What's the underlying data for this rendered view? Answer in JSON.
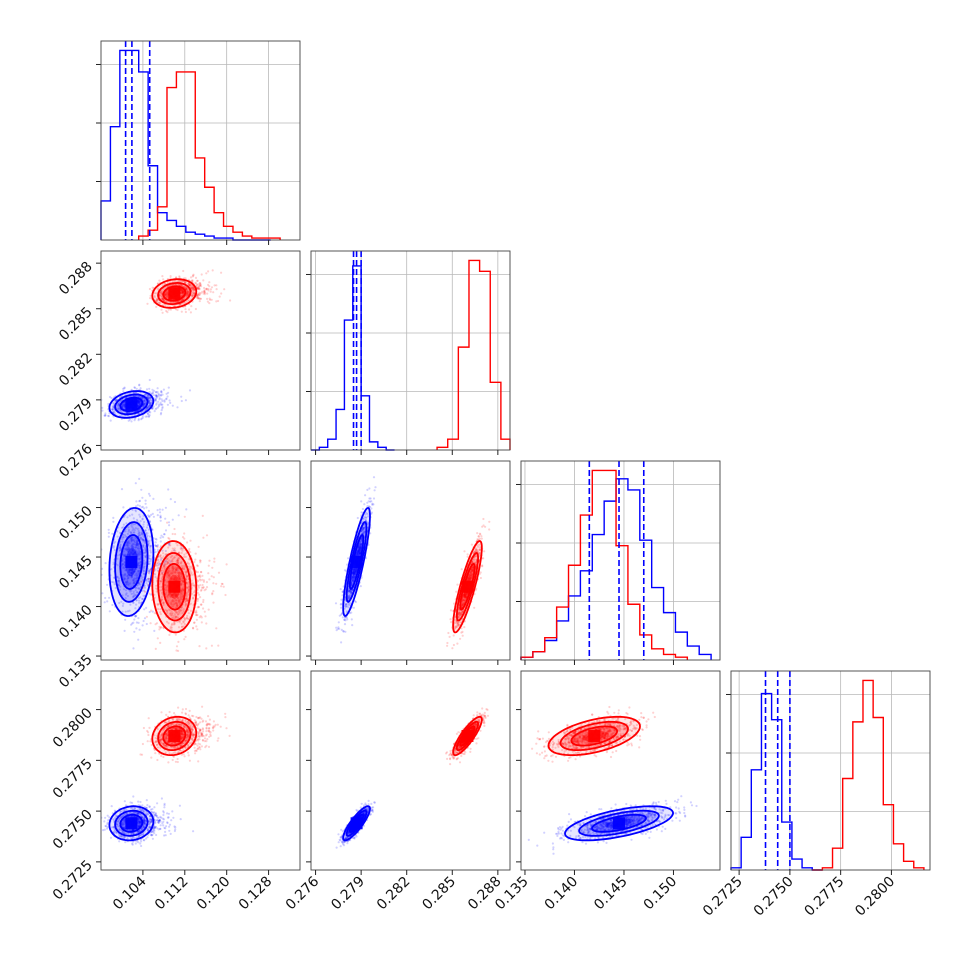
{
  "chart_data": {
    "type": "corner",
    "parameters": [
      {
        "xlim": [
          0.096,
          0.134
        ],
        "ticks": [
          0.104,
          0.112,
          0.12,
          0.128
        ],
        "tick_labels": [
          "0.104",
          "0.112",
          "0.120",
          "0.128"
        ]
      },
      {
        "xlim": [
          0.2757,
          0.2888
        ],
        "ticks": [
          0.276,
          0.279,
          0.282,
          0.285,
          0.288
        ],
        "tick_labels": [
          "0.276",
          "0.279",
          "0.282",
          "0.285",
          "0.288"
        ]
      },
      {
        "xlim": [
          0.1346,
          0.1547
        ],
        "ticks": [
          0.135,
          0.14,
          0.145,
          0.15
        ],
        "tick_labels": [
          "0.135",
          "0.140",
          "0.145",
          "0.150"
        ]
      },
      {
        "xlim": [
          0.2721,
          0.2819
        ],
        "ticks": [
          0.2725,
          0.275,
          0.2775,
          0.28
        ],
        "tick_labels": [
          "0.2725",
          "0.2750",
          "0.2775",
          "0.2800"
        ]
      }
    ],
    "series": [
      {
        "color": "#0000ff",
        "quantiles": [
          [
            0.1007,
            0.1019,
            0.1053
          ],
          [
            0.2785,
            0.2787,
            0.279
          ],
          [
            0.1415,
            0.1445,
            0.147
          ],
          [
            0.2738,
            0.2744,
            0.275
          ]
        ],
        "marginals": [
          {
            "edges": [
              0.096,
              0.0978,
              0.0996,
              0.1014,
              0.1032,
              0.105,
              0.1068,
              0.1086,
              0.1104,
              0.1122,
              0.114,
              0.1158,
              0.1176,
              0.1194,
              0.1212,
              0.123,
              0.1248,
              0.1266,
              0.1284
            ],
            "counts": [
              20,
              58,
              97,
              97,
              86,
              38,
              14,
              10,
              7,
              4,
              3,
              2,
              1,
              1,
              0,
              0,
              0,
              0
            ]
          },
          {
            "edges": [
              0.2757,
              0.27625,
              0.2768,
              0.27735,
              0.2779,
              0.27845,
              0.279,
              0.27955,
              0.2801,
              0.28065,
              0.2812
            ],
            "counts": [
              0,
              1,
              4,
              15,
              48,
              68,
              20,
              3,
              1,
              0
            ]
          },
          {
            "edges": [
              0.1346,
              0.1358,
              0.137,
              0.1382,
              0.1394,
              0.1406,
              0.1418,
              0.143,
              0.1442,
              0.1454,
              0.1466,
              0.1478,
              0.149,
              0.1502,
              0.1514,
              0.1526,
              0.1538
            ],
            "counts": [
              1,
              3,
              7,
              14,
              23,
              32,
              45,
              57,
              65,
              61,
              43,
              26,
              17,
              10,
              5,
              2
            ]
          },
          {
            "edges": [
              0.2721,
              0.2726,
              0.2731,
              0.2736,
              0.2741,
              0.2746,
              0.2751,
              0.2756,
              0.2761,
              0.2766
            ],
            "counts": [
              1,
              15,
              46,
              81,
              69,
              22,
              5,
              1,
              0
            ]
          }
        ]
      },
      {
        "color": "#ff0000",
        "quantiles": null,
        "marginals": [
          {
            "edges": [
              0.1032,
              0.105,
              0.1068,
              0.1086,
              0.1104,
              0.1122,
              0.114,
              0.1158,
              0.1176,
              0.1194,
              0.1212,
              0.123,
              0.1248,
              0.1266,
              0.1284,
              0.1302
            ],
            "counts": [
              2,
              5,
              17,
              78,
              86,
              86,
              42,
              27,
              14,
              7,
              4,
              2,
              1,
              1,
              1
            ]
          },
          {
            "edges": [
              0.284,
              0.2847,
              0.2854,
              0.2861,
              0.2868,
              0.2875,
              0.2882,
              0.2888
            ],
            "counts": [
              1,
              4,
              38,
              70,
              66,
              25,
              4
            ]
          },
          {
            "edges": [
              0.1346,
              0.1358,
              0.137,
              0.1382,
              0.1394,
              0.1406,
              0.1418,
              0.143,
              0.1442,
              0.1454,
              0.1466,
              0.1478,
              0.149,
              0.1502,
              0.1514
            ],
            "counts": [
              1,
              3,
              8,
              19,
              34,
              52,
              68,
              68,
              41,
              20,
              9,
              4,
              2,
              1
            ]
          },
          {
            "edges": [
              0.2761,
              0.2766,
              0.2771,
              0.2776,
              0.2781,
              0.2786,
              0.2791,
              0.2796,
              0.2801,
              0.2806,
              0.2811,
              0.2816
            ],
            "counts": [
              0,
              1,
              10,
              42,
              68,
              87,
              70,
              30,
              12,
              4,
              1
            ]
          }
        ]
      }
    ],
    "clusters": [
      {
        "color": "#0000ff",
        "mean": [
          0.1018,
          0.2787,
          0.1445,
          0.2744
        ],
        "sd": [
          0.002,
          0.00042,
          0.0026,
          0.0004
        ],
        "corr": [
          [
            1,
            0.25,
            0.15,
            0.1
          ],
          [
            0.25,
            1,
            0.85,
            0.85
          ],
          [
            0.15,
            0.85,
            1,
            0.6
          ],
          [
            0.1,
            0.85,
            0.6,
            1
          ]
        ]
      },
      {
        "color": "#ff0000",
        "mean": [
          0.11,
          0.286,
          0.142,
          0.2787
        ],
        "sd": [
          0.002,
          0.00045,
          0.0022,
          0.00045
        ],
        "corr": [
          [
            1,
            0.15,
            -0.05,
            0.15
          ],
          [
            0.15,
            1,
            0.85,
            0.85
          ],
          [
            -0.05,
            0.85,
            1,
            0.5
          ],
          [
            0.15,
            0.85,
            0.5,
            1
          ]
        ]
      }
    ]
  }
}
